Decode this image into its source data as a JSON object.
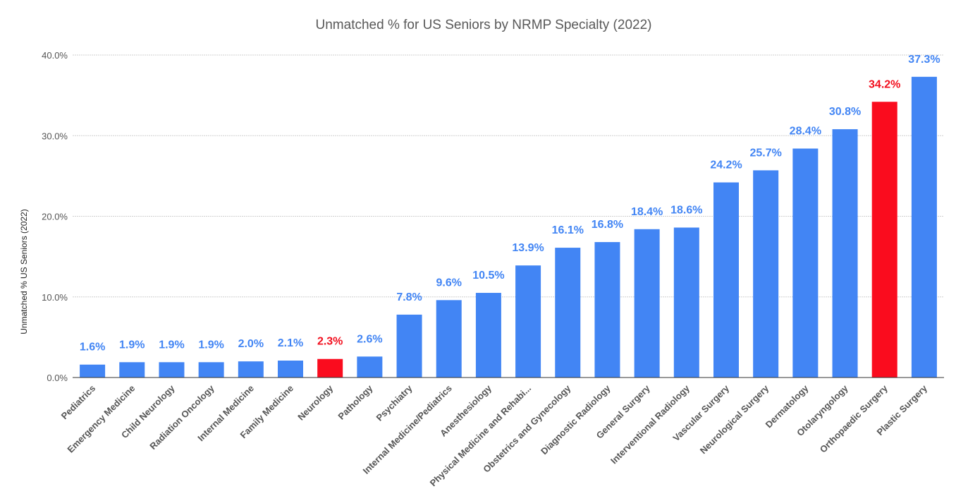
{
  "chart_data": {
    "type": "bar",
    "title": "Unmatched % for US Seniors by NRMP Specialty (2022)",
    "xlabel": "",
    "ylabel": "Unmatched % US Seniors (2022)",
    "ylim": [
      0,
      40
    ],
    "yticks": [
      0,
      10,
      20,
      30,
      40
    ],
    "ytick_labels": [
      "0.0%",
      "10.0%",
      "20.0%",
      "30.0%",
      "40.0%"
    ],
    "grid": true,
    "legend": "none",
    "categories": [
      "Pediatrics",
      "Emergency Medicine",
      "Child Neurology",
      "Radiation Oncology",
      "Internal Medicine",
      "Family Medicine",
      "Neurology",
      "Pathology",
      "Psychiatry",
      "Internal Medicine/Pediatrics",
      "Anesthesiology",
      "Physical Medicine and Rehabi...",
      "Obstetrics and Gynecology",
      "Diagnostic Radiology",
      "General Surgery",
      "Interventional Radiology",
      "Vascular Surgery",
      "Neurological Surgery",
      "Dermatology",
      "Otolaryngology",
      "Orthopaedic Surgery",
      "Plastic Surgery"
    ],
    "values": [
      1.6,
      1.9,
      1.9,
      1.9,
      2.0,
      2.1,
      2.3,
      2.6,
      7.8,
      9.6,
      10.5,
      13.9,
      16.1,
      16.8,
      18.4,
      18.6,
      24.2,
      25.7,
      28.4,
      30.8,
      34.2,
      37.3
    ],
    "value_labels": [
      "1.6%",
      "1.9%",
      "1.9%",
      "1.9%",
      "2.0%",
      "2.1%",
      "2.3%",
      "2.6%",
      "7.8%",
      "9.6%",
      "10.5%",
      "13.9%",
      "16.1%",
      "16.8%",
      "18.4%",
      "18.6%",
      "24.2%",
      "25.7%",
      "28.4%",
      "30.8%",
      "34.2%",
      "37.3%"
    ],
    "highlighted": [
      "Neurology",
      "Orthopaedic Surgery"
    ],
    "colors": {
      "default_bar": "#4285f4",
      "highlight_bar": "#fa0c1e",
      "default_label": "#4285f4",
      "highlight_label": "#f20f1e"
    }
  }
}
